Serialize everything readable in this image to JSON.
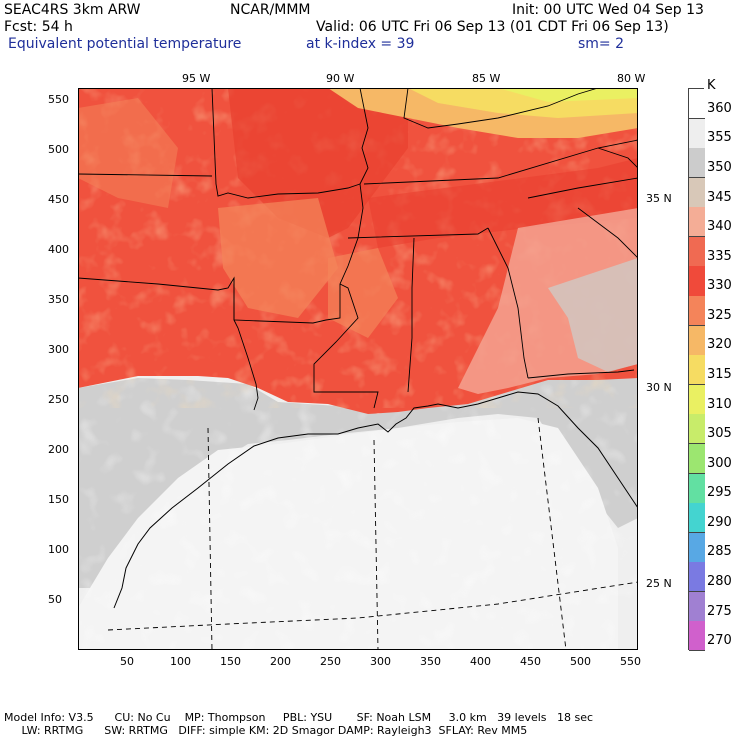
{
  "header": {
    "model": "SEAC4RS  3km ARW",
    "org": "NCAR/MMM",
    "init": "Init: 00 UTC Wed 04 Sep 13",
    "fcst": "Fcst:   54 h",
    "valid": "Valid: 06 UTC Fri 06 Sep 13 (01 CDT Fri 06 Sep 13)",
    "field": "Equivalent potential temperature",
    "level": "at k-index =  39",
    "smooth": "sm= 2"
  },
  "axes": {
    "x_ticks": [
      "50",
      "100",
      "150",
      "200",
      "250",
      "300",
      "350",
      "400",
      "450",
      "500",
      "550"
    ],
    "y_ticks": [
      "550",
      "500",
      "450",
      "400",
      "350",
      "300",
      "250",
      "200",
      "150",
      "100",
      "50"
    ],
    "lon_labels": [
      "95 W",
      "90 W",
      "85 W",
      "80 W"
    ],
    "lat_labels": [
      "35 N",
      "30 N",
      "25 N"
    ]
  },
  "colorbar": {
    "unit": "K",
    "levels": [
      "360",
      "355",
      "350",
      "345",
      "340",
      "335",
      "330",
      "325",
      "320",
      "315",
      "310",
      "305",
      "300",
      "295",
      "290",
      "285",
      "280",
      "275",
      "270"
    ],
    "colors": [
      "#ffffff",
      "#eeeeee",
      "#cccccc",
      "#d8c8b8",
      "#f4ad96",
      "#f06a52",
      "#f04a3a",
      "#f4845a",
      "#f6b866",
      "#f6dc62",
      "#eaf062",
      "#c8ec6a",
      "#9ce670",
      "#62e0a2",
      "#44d4d0",
      "#58a8e4",
      "#7a7ae2",
      "#a080d2",
      "#d060cc"
    ]
  },
  "footer": {
    "line1": "Model Info: V3.5      CU: No Cu    MP: Thompson     PBL: YSU       SF: Noah LSM     3.0 km   39 levels   18 sec",
    "line2": "     LW: RRTMG      SW: RRTMG   DIFF: simple KM: 2D Smagor DAMP: Rayleigh3  SFLAY: Rev MM5"
  }
}
